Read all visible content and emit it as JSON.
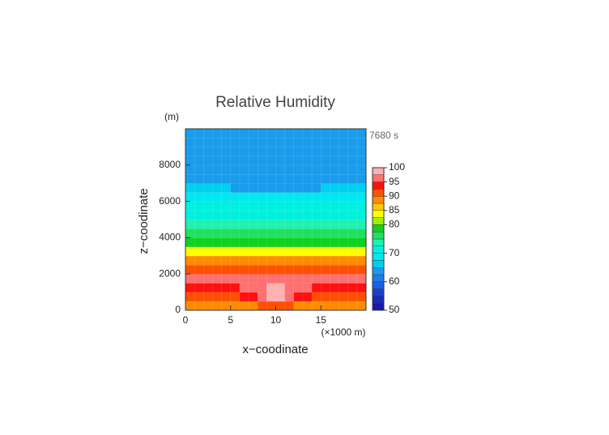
{
  "chart_data": {
    "type": "contour",
    "title": "Relative Humidity",
    "xlabel": "x−coodinate",
    "ylabel": "z−coodinate",
    "x_unit": "(×1000 m)",
    "y_unit": "(m)",
    "time_label": "7680 s",
    "xlim": [
      0,
      20
    ],
    "ylim": [
      0,
      10000
    ],
    "xticks": [
      0,
      5,
      10,
      15
    ],
    "yticks": [
      0,
      2000,
      4000,
      6000,
      8000
    ],
    "x": [
      0.5,
      1.5,
      2.5,
      3.5,
      4.5,
      5.5,
      6.5,
      7.5,
      8.5,
      9.5,
      10.5,
      11.5,
      12.5,
      13.5,
      14.5,
      15.5,
      16.5,
      17.5,
      18.5,
      19.5
    ],
    "y": [
      250,
      750,
      1250,
      1750,
      2250,
      2750,
      3250,
      3750,
      4250,
      4750,
      5250,
      5750,
      6250,
      6750,
      7250,
      7750,
      8250,
      8750,
      9250,
      9750
    ],
    "z": [
      [
        88,
        88,
        88,
        88,
        88,
        88,
        89,
        89,
        91,
        92,
        92,
        91,
        89,
        89,
        88,
        88,
        88,
        88,
        88,
        88
      ],
      [
        92,
        92,
        92,
        92,
        92,
        92,
        93,
        94,
        96,
        98,
        98,
        96,
        94,
        93,
        92,
        92,
        92,
        92,
        92,
        92
      ],
      [
        94,
        94,
        94,
        94,
        94,
        94,
        95,
        95,
        97,
        98,
        98,
        97,
        95,
        95,
        94,
        94,
        94,
        94,
        94,
        94
      ],
      [
        96,
        96,
        96,
        96,
        96,
        96,
        96,
        96,
        97,
        97,
        97,
        97,
        96,
        96,
        96,
        96,
        96,
        96,
        96,
        96
      ],
      [
        92,
        92,
        92,
        92,
        92,
        92,
        92,
        92,
        92,
        92,
        92,
        92,
        92,
        92,
        92,
        92,
        92,
        92,
        92,
        92
      ],
      [
        88,
        88,
        88,
        88,
        88,
        88,
        88,
        88,
        88,
        88,
        88,
        88,
        88,
        88,
        88,
        88,
        88,
        88,
        88,
        88
      ],
      [
        84,
        84,
        84,
        84,
        84,
        84,
        84,
        84,
        84,
        84,
        84,
        84,
        84,
        84,
        84,
        84,
        84,
        84,
        84,
        84
      ],
      [
        79,
        79,
        79,
        79,
        79,
        79,
        79,
        79,
        79,
        79,
        79,
        79,
        79,
        79,
        79,
        79,
        79,
        79,
        79,
        79
      ],
      [
        77,
        77,
        77,
        77,
        77,
        77,
        77,
        77,
        77,
        77,
        77,
        77,
        77,
        77,
        77,
        77,
        77,
        77,
        77,
        77
      ],
      [
        73,
        73,
        73,
        73,
        73,
        73,
        73,
        73,
        73,
        73,
        73,
        73,
        73,
        73,
        73,
        73,
        73,
        73,
        73,
        73
      ],
      [
        70,
        70,
        70,
        70,
        70,
        70,
        70,
        70,
        70,
        70,
        70,
        70,
        70,
        70,
        70,
        70,
        70,
        70,
        70,
        70
      ],
      [
        70,
        70,
        70,
        70,
        70,
        70,
        70,
        70,
        70,
        70,
        70,
        70,
        70,
        70,
        70,
        70,
        70,
        70,
        70,
        70
      ],
      [
        69,
        69,
        69,
        69,
        68,
        68,
        68,
        68,
        68,
        68,
        68,
        68,
        68,
        68,
        68,
        68,
        69,
        69,
        69,
        69
      ],
      [
        67,
        67,
        67,
        66,
        65,
        64,
        64,
        64,
        64,
        64,
        64,
        64,
        64,
        64,
        64,
        65,
        66,
        67,
        67,
        67
      ],
      [
        64,
        64,
        64,
        64,
        64,
        64,
        64,
        64,
        64,
        64,
        64,
        64,
        64,
        64,
        64,
        64,
        64,
        64,
        64,
        64
      ],
      [
        63,
        63,
        63,
        63,
        63,
        63,
        63,
        63,
        63,
        63,
        63,
        63,
        63,
        63,
        63,
        63,
        63,
        63,
        63,
        63
      ],
      [
        63,
        63,
        63,
        63,
        63,
        63,
        63,
        63,
        63,
        63,
        63,
        63,
        63,
        63,
        63,
        63,
        63,
        63,
        63,
        63
      ],
      [
        63,
        63,
        63,
        63,
        63,
        63,
        63,
        63,
        63,
        63,
        63,
        63,
        63,
        63,
        63,
        63,
        63,
        63,
        63,
        63
      ],
      [
        63,
        63,
        63,
        63,
        63,
        63,
        63,
        63,
        63,
        63,
        63,
        63,
        63,
        63,
        63,
        63,
        63,
        63,
        63,
        63
      ],
      [
        63,
        63,
        63,
        63,
        63,
        63,
        63,
        63,
        63,
        63,
        63,
        63,
        63,
        63,
        63,
        63,
        63,
        63,
        63,
        63
      ]
    ],
    "levels": [
      50,
      52.5,
      55,
      57.5,
      60,
      62.5,
      65,
      67.5,
      70,
      72.5,
      75,
      77.5,
      80,
      82.5,
      85,
      87.5,
      90,
      92.5,
      95,
      97.5,
      100
    ],
    "colors": [
      "#1a1aa0",
      "#1a2ab8",
      "#1a40d0",
      "#1a60e0",
      "#1a80e8",
      "#1a9cec",
      "#00d0f0",
      "#00e8f0",
      "#00f0e0",
      "#20f0b0",
      "#20e060",
      "#10d020",
      "#a0f000",
      "#ffff00",
      "#ffc800",
      "#ff8c00",
      "#ff5000",
      "#ff1010",
      "#ff7070",
      "#ffb0b0"
    ],
    "colorbar_ticks": [
      50,
      60,
      70,
      80,
      85,
      90,
      95,
      100
    ]
  }
}
